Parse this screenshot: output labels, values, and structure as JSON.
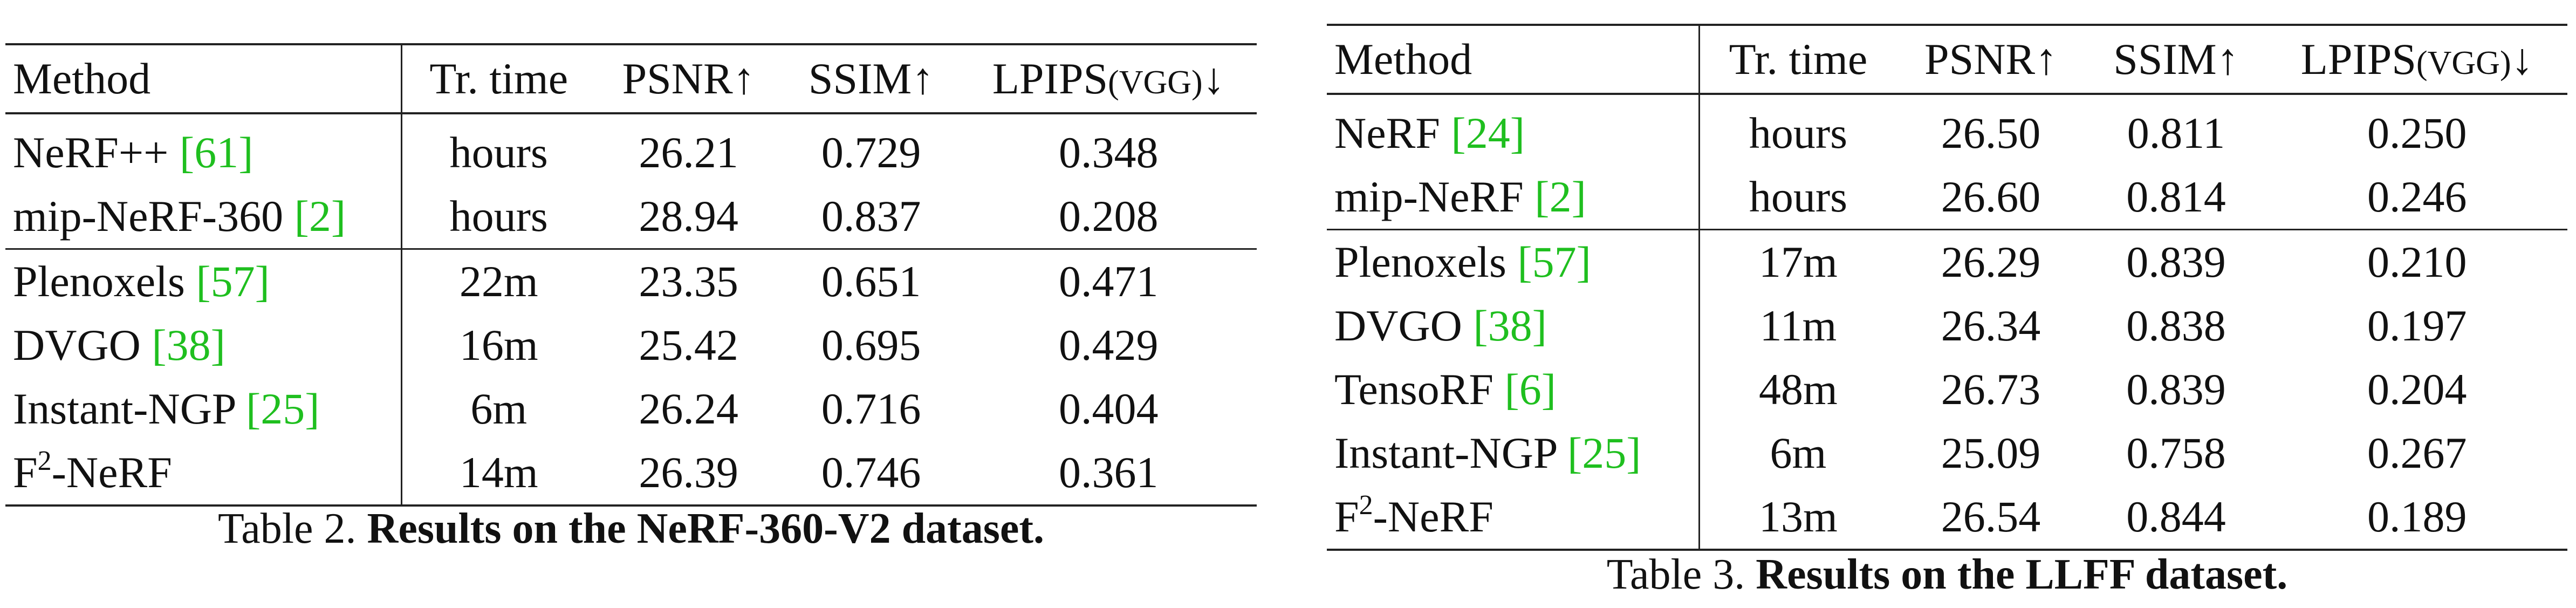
{
  "table2": {
    "headers": {
      "method": "Method",
      "time": "Tr. time",
      "psnr": "PSNR↑",
      "ssim": "SSIM↑",
      "lpips": "LPIPS",
      "lpips_sub": "(VGG)",
      "lpips_arrow": "↓"
    },
    "rows": [
      {
        "method": "NeRF++ ",
        "ref": "[61]",
        "sup": "",
        "method_tail": "",
        "time": "hours",
        "psnr": "26.21",
        "ssim": "0.729",
        "lpips": "0.348",
        "bold": []
      },
      {
        "method": "mip-NeRF-360 ",
        "ref": "[2]",
        "sup": "",
        "method_tail": "",
        "time": "hours",
        "psnr": "28.94",
        "ssim": "0.837",
        "lpips": "0.208",
        "bold": [
          "psnr",
          "ssim",
          "lpips"
        ]
      },
      {
        "method": "Plenoxels ",
        "ref": "[57]",
        "sup": "",
        "method_tail": "",
        "time": "22m",
        "psnr": "23.35",
        "ssim": "0.651",
        "lpips": "0.471",
        "bold": []
      },
      {
        "method": "DVGO ",
        "ref": "[38]",
        "sup": "",
        "method_tail": "",
        "time": "16m",
        "psnr": "25.42",
        "ssim": "0.695",
        "lpips": "0.429",
        "bold": []
      },
      {
        "method": "Instant-NGP ",
        "ref": "[25]",
        "sup": "",
        "method_tail": "",
        "time": "6m",
        "psnr": "26.24",
        "ssim": "0.716",
        "lpips": "0.404",
        "bold": []
      },
      {
        "method": "F",
        "ref": "",
        "sup": "2",
        "method_tail": "-NeRF",
        "time": "14m",
        "psnr": "26.39",
        "ssim": "0.746",
        "lpips": "0.361",
        "bold": [
          "psnr",
          "ssim",
          "lpips"
        ]
      }
    ],
    "caption_prefix": "Table 2. ",
    "caption_bold": "Results on the NeRF-360-V2 dataset."
  },
  "table3": {
    "headers": {
      "method": "Method",
      "time": "Tr. time",
      "psnr": "PSNR↑",
      "ssim": "SSIM↑",
      "lpips": "LPIPS",
      "lpips_sub": "(VGG)",
      "lpips_arrow": "↓"
    },
    "rows": [
      {
        "method": "NeRF ",
        "ref": "[24]",
        "sup": "",
        "method_tail": "",
        "time": "hours",
        "psnr": "26.50",
        "ssim": "0.811",
        "lpips": "0.250",
        "bold": []
      },
      {
        "method": "mip-NeRF ",
        "ref": "[2]",
        "sup": "",
        "method_tail": "",
        "time": "hours",
        "psnr": "26.60",
        "ssim": "0.814",
        "lpips": "0.246",
        "bold": [
          "psnr",
          "ssim",
          "lpips"
        ]
      },
      {
        "method": "Plenoxels ",
        "ref": "[57]",
        "sup": "",
        "method_tail": "",
        "time": "17m",
        "psnr": "26.29",
        "ssim": "0.839",
        "lpips": "0.210",
        "bold": []
      },
      {
        "method": "DVGO ",
        "ref": "[38]",
        "sup": "",
        "method_tail": "",
        "time": "11m",
        "psnr": "26.34",
        "ssim": "0.838",
        "lpips": "0.197",
        "bold": []
      },
      {
        "method": "TensoRF ",
        "ref": "[6]",
        "sup": "",
        "method_tail": "",
        "time": "48m",
        "psnr": "26.73",
        "ssim": "0.839",
        "lpips": "0.204",
        "bold": [
          "psnr"
        ]
      },
      {
        "method": "Instant-NGP ",
        "ref": "[25]",
        "sup": "",
        "method_tail": "",
        "time": "6m",
        "psnr": "25.09",
        "ssim": "0.758",
        "lpips": "0.267",
        "bold": []
      },
      {
        "method": "F",
        "ref": "",
        "sup": "2",
        "method_tail": "-NeRF",
        "time": "13m",
        "psnr": "26.54",
        "ssim": "0.844",
        "lpips": "0.189",
        "bold": [
          "ssim",
          "lpips"
        ]
      }
    ],
    "caption_prefix": "Table 3. ",
    "caption_bold": "Results on the LLFF dataset."
  }
}
